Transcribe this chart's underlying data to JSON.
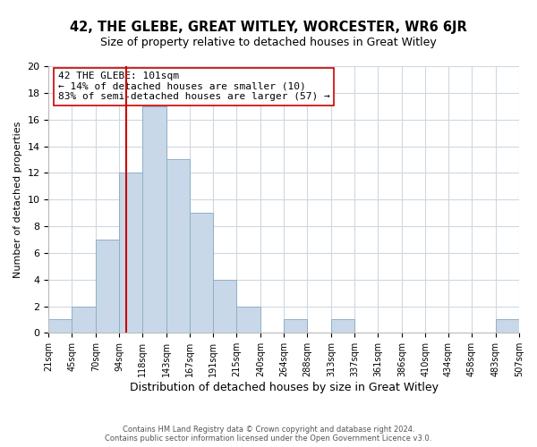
{
  "title": "42, THE GLEBE, GREAT WITLEY, WORCESTER, WR6 6JR",
  "subtitle": "Size of property relative to detached houses in Great Witley",
  "xlabel": "Distribution of detached houses by size in Great Witley",
  "ylabel": "Number of detached properties",
  "bin_edges": [
    21,
    45,
    70,
    94,
    118,
    143,
    167,
    191,
    215,
    240,
    264,
    288,
    313,
    337,
    361,
    386,
    410,
    434,
    458,
    483,
    507
  ],
  "bin_counts": [
    1,
    2,
    7,
    12,
    17,
    13,
    9,
    4,
    2,
    0,
    1,
    0,
    1,
    0,
    0,
    0,
    0,
    0,
    0,
    1
  ],
  "bar_color": "#c8d8e8",
  "bar_edgecolor": "#8fb0c8",
  "vline_x": 101,
  "vline_color": "#cc0000",
  "annotation_line1": "42 THE GLEBE: 101sqm",
  "annotation_line2": "← 14% of detached houses are smaller (10)",
  "annotation_line3": "83% of semi-detached houses are larger (57) →",
  "annotation_box_edgecolor": "#cc0000",
  "annotation_box_facecolor": "#ffffff",
  "tick_labels": [
    "21sqm",
    "45sqm",
    "70sqm",
    "94sqm",
    "118sqm",
    "143sqm",
    "167sqm",
    "191sqm",
    "215sqm",
    "240sqm",
    "264sqm",
    "288sqm",
    "313sqm",
    "337sqm",
    "361sqm",
    "386sqm",
    "410sqm",
    "434sqm",
    "458sqm",
    "483sqm",
    "507sqm"
  ],
  "ylim": [
    0,
    20
  ],
  "yticks": [
    0,
    2,
    4,
    6,
    8,
    10,
    12,
    14,
    16,
    18,
    20
  ],
  "footer_line1": "Contains HM Land Registry data © Crown copyright and database right 2024.",
  "footer_line2": "Contains public sector information licensed under the Open Government Licence v3.0.",
  "background_color": "#ffffff",
  "grid_color": "#d0d8e0",
  "title_fontsize": 10.5,
  "subtitle_fontsize": 9,
  "ylabel_fontsize": 8,
  "xlabel_fontsize": 9,
  "tick_fontsize": 7,
  "annotation_fontsize": 8,
  "footer_fontsize": 6
}
